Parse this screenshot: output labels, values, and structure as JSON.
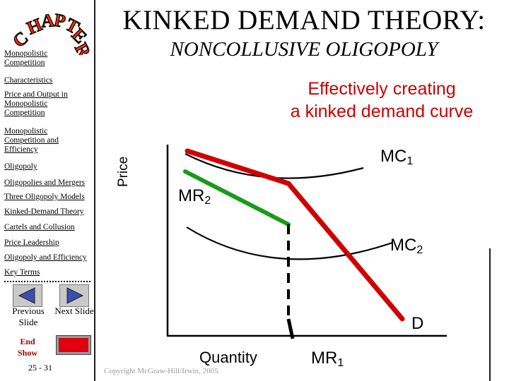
{
  "header": {
    "title": "KINKED DEMAND THEORY:",
    "subtitle": "NONCOLLUSIVE OLIGOPOLY",
    "chapter_logo": "CHAPTER"
  },
  "sidebar": {
    "items": [
      {
        "label": "Monopolistic Competition"
      },
      {
        "label": "Characteristics"
      },
      {
        "label": "Price and Output in Monopolistic Competition"
      },
      {
        "label": "Monopolistic Competition and Efficiency"
      },
      {
        "label": "Oligopoly"
      },
      {
        "label": "Oligopolies and Mergers"
      },
      {
        "label": "Three Oligopoly Models"
      },
      {
        "label": "Kinked-Demand Theory"
      },
      {
        "label": "Cartels and Collusion"
      },
      {
        "label": "Price Leadership"
      },
      {
        "label": "Oligopoly and Efficiency"
      },
      {
        "label": "Key Terms"
      }
    ],
    "previous_label": "Previous Slide",
    "next_label": "Next Slide",
    "end_label": "End Show",
    "page": "25 - 31"
  },
  "slide": {
    "caption_line1": "Effectively creating",
    "caption_line2": "a kinked demand curve",
    "copyright": "Copyright McGraw-Hill/Irwin, 2005"
  },
  "labels": {
    "mc1": "MC",
    "mc1_sub": "1",
    "mc2": "MC",
    "mc2_sub": "2",
    "mr2": "MR",
    "mr2_sub": "2",
    "mr1": "MR",
    "mr1_sub": "1",
    "d": "D",
    "price": "Price",
    "quantity": "Quantity"
  },
  "colors": {
    "demand": "#d10000",
    "mr_upper": "#1a9a1a",
    "axis": "#000000"
  }
}
